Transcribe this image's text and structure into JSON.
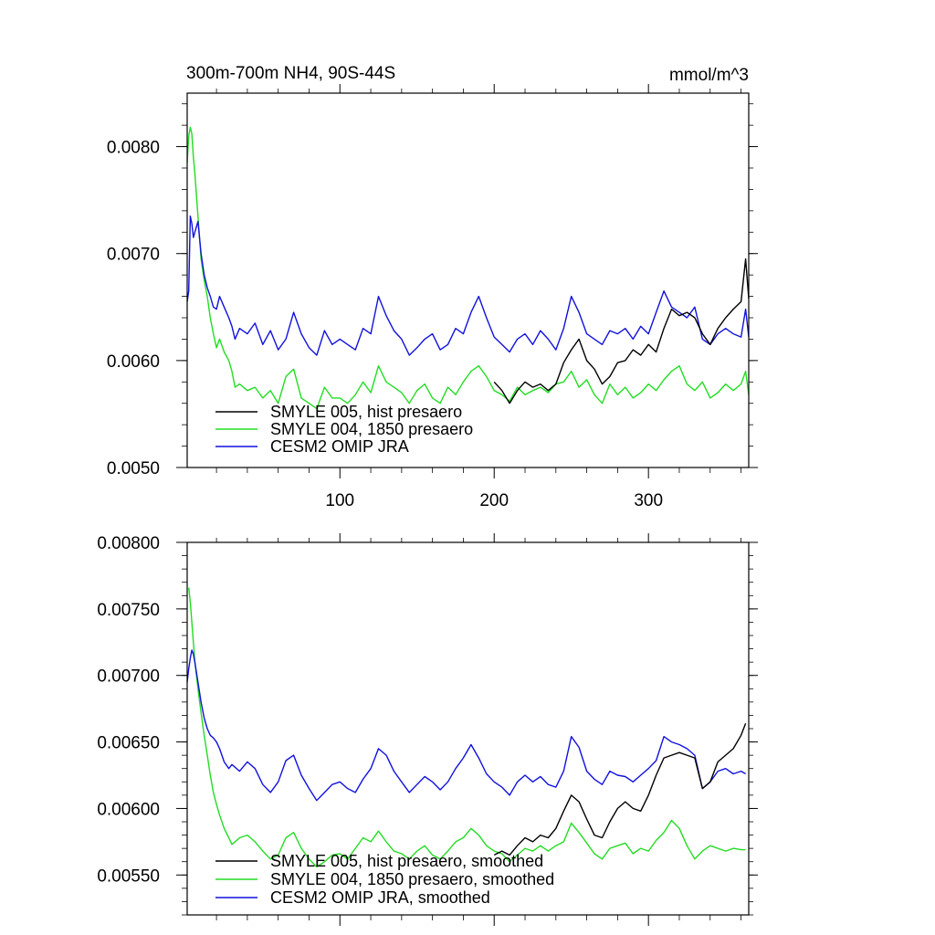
{
  "chart_data": [
    {
      "type": "line",
      "title": "300m-700m NH4, 90S-44S",
      "units": "mmol/m^3",
      "xlabel": "",
      "ylabel": "",
      "xlim": [
        1,
        365
      ],
      "ylim": [
        0.005,
        0.0085
      ],
      "x_ticks": [
        100,
        200,
        300
      ],
      "x_tick_labels": [
        "100",
        "200",
        "300"
      ],
      "y_ticks": [
        0.005,
        0.006,
        0.007,
        0.008
      ],
      "y_tick_labels": [
        "0.0050",
        "0.0060",
        "0.0070",
        "0.0080"
      ],
      "grid": false,
      "legend_position": "bottom-left",
      "series": [
        {
          "name": "SMYLE 005, hist presaero",
          "color": "#000000",
          "x": [
            200,
            205,
            210,
            215,
            220,
            225,
            230,
            235,
            240,
            245,
            250,
            255,
            260,
            265,
            270,
            275,
            280,
            285,
            290,
            295,
            300,
            305,
            310,
            315,
            320,
            325,
            330,
            335,
            340,
            345,
            350,
            355,
            360,
            363,
            365
          ],
          "values": [
            0.0058,
            0.00572,
            0.0056,
            0.00572,
            0.0058,
            0.00575,
            0.00578,
            0.00572,
            0.00578,
            0.00598,
            0.0061,
            0.0062,
            0.006,
            0.00592,
            0.00578,
            0.00585,
            0.00598,
            0.006,
            0.0061,
            0.00605,
            0.00615,
            0.00608,
            0.0063,
            0.00648,
            0.00642,
            0.00645,
            0.0064,
            0.00625,
            0.00615,
            0.0063,
            0.0064,
            0.00648,
            0.00655,
            0.00695,
            0.00658
          ]
        },
        {
          "name": "SMYLE 004, 1850 presaero",
          "color": "#22dd22",
          "x": [
            1,
            2,
            3,
            4,
            5,
            6,
            7,
            8,
            9,
            10,
            12,
            14,
            16,
            18,
            20,
            22,
            25,
            28,
            30,
            32,
            35,
            40,
            45,
            50,
            55,
            60,
            65,
            70,
            75,
            80,
            85,
            90,
            95,
            100,
            105,
            110,
            115,
            120,
            125,
            130,
            135,
            140,
            145,
            150,
            155,
            160,
            165,
            170,
            175,
            180,
            185,
            190,
            195,
            200,
            205,
            210,
            215,
            220,
            225,
            230,
            235,
            240,
            245,
            250,
            255,
            260,
            265,
            270,
            275,
            280,
            285,
            290,
            295,
            300,
            305,
            310,
            315,
            320,
            325,
            330,
            335,
            340,
            345,
            350,
            355,
            360,
            363,
            365
          ],
          "values": [
            0.00785,
            0.0081,
            0.00818,
            0.00812,
            0.0079,
            0.00775,
            0.00755,
            0.00735,
            0.00715,
            0.00695,
            0.00675,
            0.0066,
            0.0064,
            0.00625,
            0.00612,
            0.0062,
            0.00608,
            0.006,
            0.0059,
            0.00575,
            0.00578,
            0.00572,
            0.00575,
            0.00565,
            0.00572,
            0.0056,
            0.00585,
            0.00592,
            0.00565,
            0.0056,
            0.00555,
            0.00575,
            0.00565,
            0.00565,
            0.0056,
            0.00568,
            0.0058,
            0.0057,
            0.00595,
            0.0058,
            0.00575,
            0.0057,
            0.0056,
            0.00572,
            0.00578,
            0.00565,
            0.0056,
            0.00575,
            0.00568,
            0.0058,
            0.0059,
            0.00595,
            0.00585,
            0.00572,
            0.00568,
            0.00562,
            0.00575,
            0.00568,
            0.00572,
            0.00575,
            0.0057,
            0.00578,
            0.0058,
            0.0059,
            0.00575,
            0.00582,
            0.00568,
            0.0056,
            0.00578,
            0.00568,
            0.00575,
            0.00565,
            0.0057,
            0.00578,
            0.00572,
            0.00582,
            0.0059,
            0.00595,
            0.00578,
            0.00572,
            0.0058,
            0.00565,
            0.0057,
            0.00578,
            0.00572,
            0.00578,
            0.0059,
            0.00568
          ]
        },
        {
          "name": "CESM2 OMIP JRA",
          "color": "#1111dd",
          "x": [
            1,
            2,
            3,
            4,
            5,
            6,
            7,
            8,
            9,
            10,
            12,
            14,
            16,
            18,
            20,
            22,
            25,
            28,
            30,
            32,
            35,
            40,
            45,
            50,
            55,
            60,
            65,
            70,
            75,
            80,
            85,
            90,
            95,
            100,
            105,
            110,
            115,
            120,
            125,
            130,
            135,
            140,
            145,
            150,
            155,
            160,
            165,
            170,
            175,
            180,
            185,
            190,
            195,
            200,
            205,
            210,
            215,
            220,
            225,
            230,
            235,
            240,
            245,
            250,
            255,
            260,
            265,
            270,
            275,
            280,
            285,
            290,
            295,
            300,
            305,
            310,
            315,
            320,
            325,
            330,
            335,
            340,
            345,
            350,
            355,
            360,
            363,
            365
          ],
          "values": [
            0.00655,
            0.00665,
            0.00735,
            0.00728,
            0.00715,
            0.0072,
            0.00725,
            0.0073,
            0.00715,
            0.007,
            0.0068,
            0.00668,
            0.0066,
            0.0065,
            0.00648,
            0.0066,
            0.0065,
            0.0064,
            0.00632,
            0.0062,
            0.0063,
            0.00625,
            0.00635,
            0.00615,
            0.00628,
            0.0061,
            0.0062,
            0.00645,
            0.00625,
            0.00612,
            0.00605,
            0.00628,
            0.00615,
            0.0062,
            0.00615,
            0.0061,
            0.0063,
            0.00625,
            0.0066,
            0.00642,
            0.00628,
            0.0062,
            0.00605,
            0.00612,
            0.0062,
            0.00625,
            0.0061,
            0.00615,
            0.0063,
            0.00625,
            0.00645,
            0.0066,
            0.0064,
            0.00622,
            0.00615,
            0.00608,
            0.0062,
            0.00625,
            0.00615,
            0.00628,
            0.0062,
            0.0061,
            0.0063,
            0.0066,
            0.00645,
            0.00625,
            0.0062,
            0.00615,
            0.00628,
            0.00625,
            0.0063,
            0.0062,
            0.00632,
            0.00625,
            0.00645,
            0.00665,
            0.0065,
            0.00645,
            0.0064,
            0.0065,
            0.0062,
            0.00615,
            0.00625,
            0.0063,
            0.00625,
            0.00622,
            0.00648,
            0.00622
          ]
        }
      ]
    },
    {
      "type": "line",
      "title": "",
      "xlabel": "",
      "ylabel": "",
      "xlim": [
        1,
        365
      ],
      "ylim": [
        0.0052,
        0.008
      ],
      "x_ticks": [
        100,
        200,
        300
      ],
      "y_ticks": [
        0.0055,
        0.006,
        0.0065,
        0.007,
        0.0075,
        0.008
      ],
      "y_tick_labels": [
        "0.00550",
        "0.00600",
        "0.00650",
        "0.00700",
        "0.00750",
        "0.00800"
      ],
      "grid": false,
      "legend_position": "bottom-left",
      "series": [
        {
          "name": "SMYLE 005, hist presaero, smoothed",
          "color": "#000000",
          "x": [
            200,
            205,
            210,
            215,
            220,
            225,
            230,
            235,
            240,
            245,
            250,
            255,
            260,
            265,
            270,
            275,
            280,
            285,
            290,
            295,
            300,
            305,
            310,
            315,
            320,
            325,
            330,
            335,
            340,
            345,
            350,
            355,
            360,
            363
          ],
          "values": [
            0.00565,
            0.00568,
            0.00565,
            0.00572,
            0.00578,
            0.00575,
            0.0058,
            0.00578,
            0.00585,
            0.00598,
            0.0061,
            0.00605,
            0.00592,
            0.0058,
            0.00578,
            0.0059,
            0.006,
            0.00605,
            0.006,
            0.00598,
            0.0061,
            0.00625,
            0.00638,
            0.0064,
            0.00642,
            0.0064,
            0.00638,
            0.00615,
            0.0062,
            0.00635,
            0.0064,
            0.00645,
            0.00655,
            0.00664
          ]
        },
        {
          "name": "SMYLE 004, 1850 presaero, smoothed",
          "color": "#22dd22",
          "x": [
            2,
            3,
            4,
            5,
            6,
            8,
            10,
            12,
            14,
            16,
            18,
            20,
            22,
            25,
            28,
            30,
            35,
            40,
            45,
            50,
            55,
            60,
            65,
            70,
            75,
            80,
            85,
            90,
            95,
            100,
            105,
            110,
            115,
            120,
            125,
            130,
            135,
            140,
            145,
            150,
            155,
            160,
            165,
            170,
            175,
            180,
            185,
            190,
            195,
            200,
            205,
            210,
            215,
            220,
            225,
            230,
            235,
            240,
            245,
            250,
            255,
            260,
            265,
            270,
            275,
            280,
            285,
            290,
            295,
            300,
            305,
            310,
            315,
            320,
            325,
            330,
            335,
            340,
            345,
            350,
            355,
            360,
            363
          ],
          "values": [
            0.00766,
            0.00755,
            0.0074,
            0.00725,
            0.0071,
            0.0069,
            0.00672,
            0.00655,
            0.0064,
            0.00625,
            0.00612,
            0.00603,
            0.00595,
            0.00585,
            0.00578,
            0.00573,
            0.00578,
            0.0058,
            0.00575,
            0.00568,
            0.00562,
            0.00565,
            0.00578,
            0.00582,
            0.0057,
            0.00562,
            0.00556,
            0.0056,
            0.00565,
            0.00566,
            0.00562,
            0.0057,
            0.00578,
            0.00575,
            0.00583,
            0.00575,
            0.00568,
            0.00566,
            0.00562,
            0.00568,
            0.00572,
            0.00565,
            0.00562,
            0.00568,
            0.00575,
            0.00578,
            0.00585,
            0.0058,
            0.00572,
            0.00568,
            0.00566,
            0.0056,
            0.00565,
            0.0057,
            0.00568,
            0.00572,
            0.00568,
            0.00572,
            0.00575,
            0.00589,
            0.00582,
            0.00574,
            0.00566,
            0.00562,
            0.0057,
            0.00572,
            0.00574,
            0.00566,
            0.0057,
            0.00568,
            0.00576,
            0.00582,
            0.00591,
            0.00585,
            0.00572,
            0.00562,
            0.00568,
            0.00572,
            0.0057,
            0.00568,
            0.0057,
            0.00569,
            0.00569
          ]
        },
        {
          "name": "CESM2 OMIP JRA, smoothed",
          "color": "#1111dd",
          "x": [
            1,
            2,
            3,
            4,
            5,
            6,
            8,
            10,
            12,
            14,
            16,
            18,
            20,
            22,
            25,
            28,
            30,
            35,
            40,
            45,
            50,
            55,
            60,
            65,
            70,
            75,
            80,
            85,
            90,
            95,
            100,
            105,
            110,
            115,
            120,
            125,
            130,
            135,
            140,
            145,
            150,
            155,
            160,
            165,
            170,
            175,
            180,
            185,
            190,
            195,
            200,
            205,
            210,
            215,
            220,
            225,
            230,
            235,
            240,
            245,
            250,
            255,
            260,
            265,
            270,
            275,
            280,
            285,
            290,
            295,
            300,
            305,
            310,
            315,
            320,
            325,
            330,
            335,
            340,
            345,
            350,
            355,
            360,
            363
          ],
          "values": [
            0.00695,
            0.00705,
            0.00713,
            0.00719,
            0.00716,
            0.0071,
            0.00695,
            0.0068,
            0.00668,
            0.0066,
            0.00655,
            0.00653,
            0.0065,
            0.00645,
            0.00635,
            0.0063,
            0.00633,
            0.00628,
            0.00635,
            0.0063,
            0.00618,
            0.00612,
            0.0062,
            0.00636,
            0.0064,
            0.00625,
            0.00615,
            0.00606,
            0.00612,
            0.00618,
            0.0062,
            0.00615,
            0.00612,
            0.00622,
            0.0063,
            0.00645,
            0.0064,
            0.00628,
            0.0062,
            0.00612,
            0.00618,
            0.00624,
            0.0062,
            0.00614,
            0.0062,
            0.0063,
            0.00638,
            0.00648,
            0.00638,
            0.00626,
            0.0062,
            0.00616,
            0.0061,
            0.0062,
            0.00625,
            0.0062,
            0.00624,
            0.00618,
            0.00616,
            0.00628,
            0.00654,
            0.00646,
            0.00628,
            0.00622,
            0.00618,
            0.00628,
            0.00625,
            0.00624,
            0.0062,
            0.00625,
            0.0063,
            0.00636,
            0.00654,
            0.0065,
            0.00648,
            0.00645,
            0.0064,
            0.00615,
            0.0062,
            0.00628,
            0.0063,
            0.00626,
            0.00628,
            0.00626
          ]
        }
      ]
    }
  ]
}
